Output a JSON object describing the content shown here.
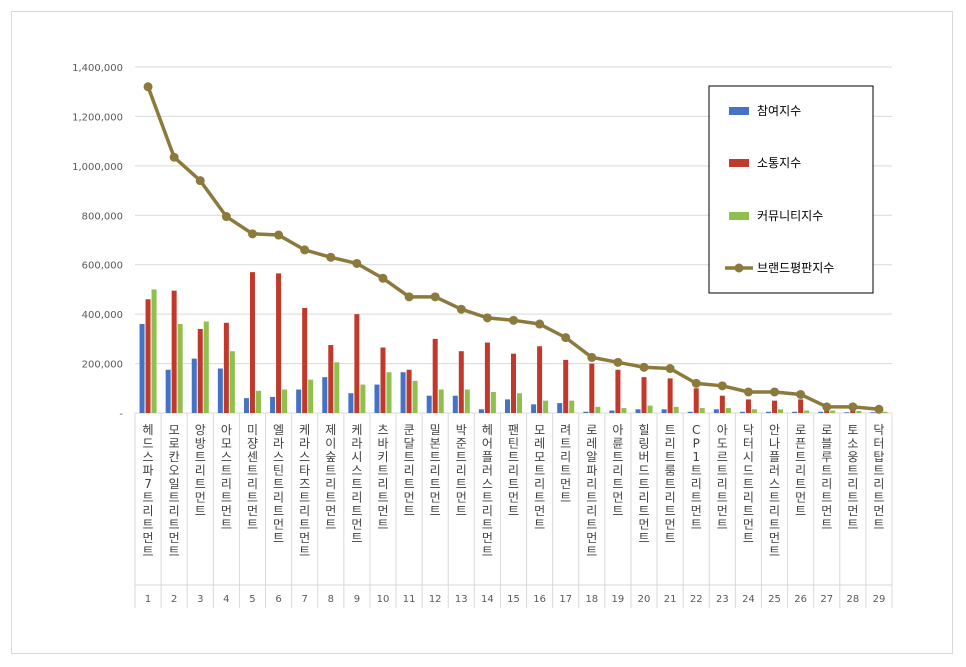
{
  "chart_data": {
    "type": "bar",
    "title": "",
    "xlabel": "",
    "ylabel": "",
    "ylim": [
      0,
      1400000
    ],
    "yticks": [
      0,
      200000,
      400000,
      600000,
      800000,
      1000000,
      1200000,
      1400000
    ],
    "ytick_labels": [
      "-",
      "200,000",
      "400,000",
      "600,000",
      "800,000",
      "1,000,000",
      "1,200,000",
      "1,400,000"
    ],
    "grid": "horizontal",
    "legend_position": "right",
    "categories": [
      "헤드스파7트리트먼트",
      "모로칸오일트리트먼트",
      "앙방트리트먼트",
      "아모스트리트먼트",
      "미쟝센트리트먼트",
      "엘라스틴트리트먼트",
      "케라스타즈트리트먼트",
      "제이숲트리트먼트",
      "케라시스트리트먼트",
      "츠바키트리트먼트",
      "쿤달트리트먼트",
      "밀본트리트먼트",
      "박준트리트먼트",
      "헤어플러스트리트먼트",
      "팬틴트리트먼트",
      "모레모트리트먼트",
      "려트리트먼트",
      "로레알파리트리트먼트",
      "아륜트리트먼트",
      "힐링버드트리트먼트",
      "트리트룸트리트먼트",
      "CP1트리트먼트",
      "아도르트리트먼트",
      "닥터시드트리트먼트",
      "안나플러스트리트먼트",
      "로픈트리트먼트",
      "로블루트리트먼트",
      "토소웅트리트먼트",
      "닥터탑트리트먼트"
    ],
    "ranks": [
      "1",
      "2",
      "3",
      "4",
      "5",
      "6",
      "7",
      "8",
      "9",
      "10",
      "11",
      "12",
      "13",
      "14",
      "15",
      "16",
      "17",
      "18",
      "19",
      "20",
      "21",
      "22",
      "23",
      "24",
      "25",
      "26",
      "27",
      "28",
      "29"
    ],
    "series": [
      {
        "name": "참여지수",
        "kind": "bar",
        "color": "#4472c4",
        "values": [
          360000,
          175000,
          220000,
          180000,
          60000,
          65000,
          95000,
          145000,
          80000,
          115000,
          165000,
          70000,
          70000,
          15000,
          55000,
          35000,
          40000,
          5000,
          10000,
          15000,
          15000,
          5000,
          15000,
          5000,
          5000,
          5000,
          5000,
          3000,
          3000
        ]
      },
      {
        "name": "소통지수",
        "kind": "bar",
        "color": "#c0392b",
        "values": [
          460000,
          495000,
          340000,
          365000,
          570000,
          565000,
          425000,
          275000,
          400000,
          265000,
          175000,
          300000,
          250000,
          285000,
          240000,
          270000,
          215000,
          200000,
          175000,
          145000,
          140000,
          100000,
          70000,
          55000,
          50000,
          55000,
          15000,
          15000,
          10000
        ]
      },
      {
        "name": "커뮤니티지수",
        "kind": "bar",
        "color": "#8fbf4d",
        "values": [
          500000,
          360000,
          370000,
          250000,
          90000,
          95000,
          135000,
          205000,
          115000,
          165000,
          130000,
          95000,
          95000,
          85000,
          80000,
          50000,
          50000,
          25000,
          20000,
          30000,
          25000,
          20000,
          20000,
          15000,
          15000,
          10000,
          10000,
          8000,
          5000
        ]
      },
      {
        "name": "브랜드평판지수",
        "kind": "line",
        "color": "#8c7a3c",
        "values": [
          1320000,
          1035000,
          940000,
          795000,
          725000,
          720000,
          660000,
          630000,
          605000,
          545000,
          470000,
          470000,
          420000,
          385000,
          375000,
          360000,
          305000,
          225000,
          205000,
          185000,
          180000,
          120000,
          110000,
          85000,
          85000,
          75000,
          25000,
          25000,
          15000
        ]
      }
    ]
  }
}
